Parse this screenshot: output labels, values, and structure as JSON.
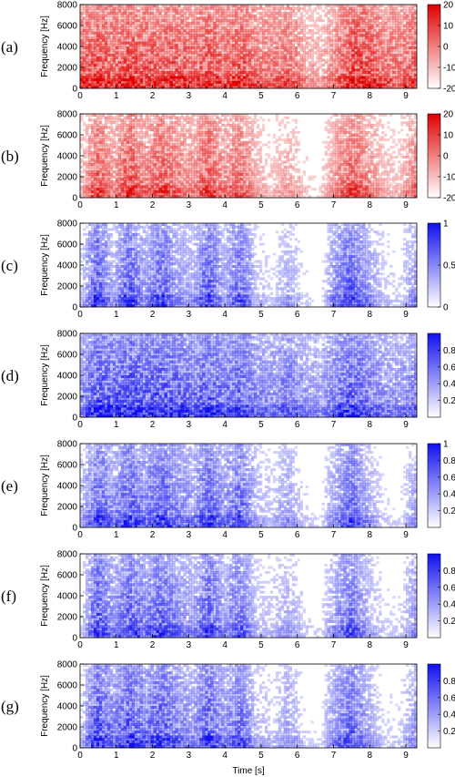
{
  "xlabel": "Time [s]",
  "chart_data": [
    {
      "panel_label": "(a)",
      "type": "heatmap",
      "ylabel": "Frequency [Hz]",
      "xlim": [
        0,
        9.3
      ],
      "ylim": [
        0,
        8000
      ],
      "xticks": [
        "0",
        "1",
        "2",
        "3",
        "4",
        "5",
        "6",
        "7",
        "8",
        "9"
      ],
      "yticks": [
        "0",
        "2000",
        "4000",
        "6000",
        "8000"
      ],
      "colorbar": {
        "color": "#e00000",
        "range": [
          -20,
          20
        ],
        "ticks": [
          "-20",
          "-10",
          "0",
          "10",
          "20"
        ]
      },
      "energy": [
        0.78,
        0.88,
        0.8,
        0.88,
        0.85,
        0.78,
        0.86,
        0.7,
        0.9,
        0.72,
        0.9,
        0.65,
        0.6,
        0.7,
        0.45,
        0.35,
        0.6,
        0.95,
        0.9,
        0.7,
        0.65,
        0.8
      ]
    },
    {
      "panel_label": "(b)",
      "type": "heatmap",
      "ylabel": "Frequency [Hz]",
      "xlim": [
        0,
        9.3
      ],
      "ylim": [
        0,
        8000
      ],
      "xticks": [
        "0",
        "1",
        "2",
        "3",
        "4",
        "5",
        "6",
        "7",
        "8",
        "9"
      ],
      "yticks": [
        "0",
        "2000",
        "4000",
        "6000",
        "8000"
      ],
      "colorbar": {
        "color": "#e00000",
        "range": [
          -20,
          20
        ],
        "ticks": [
          "-20",
          "-10",
          "0",
          "10",
          "20"
        ]
      },
      "energy": [
        0.3,
        0.8,
        0.45,
        0.85,
        0.55,
        0.8,
        0.6,
        0.5,
        0.8,
        0.5,
        0.7,
        0.35,
        0.25,
        0.4,
        0.2,
        0.15,
        0.5,
        0.75,
        0.55,
        0.3,
        0.25,
        0.6
      ]
    },
    {
      "panel_label": "(c)",
      "type": "heatmap",
      "ylabel": "Frequency [Hz]",
      "xlim": [
        0,
        9.3
      ],
      "ylim": [
        0,
        8000
      ],
      "xticks": [
        "0",
        "1",
        "2",
        "3",
        "4",
        "5",
        "6",
        "7",
        "8",
        "9"
      ],
      "yticks": [
        "0",
        "2000",
        "4000",
        "6000",
        "8000"
      ],
      "colorbar": {
        "color": "#1010ee",
        "range": [
          0,
          1
        ],
        "ticks": [
          "0",
          "0.5",
          "1"
        ]
      },
      "energy": [
        0.25,
        0.9,
        0.35,
        0.9,
        0.45,
        0.85,
        0.5,
        0.4,
        0.9,
        0.4,
        0.8,
        0.3,
        0.2,
        0.4,
        0.2,
        0.1,
        0.6,
        0.85,
        0.5,
        0.25,
        0.2,
        0.5
      ]
    },
    {
      "panel_label": "(d)",
      "type": "heatmap",
      "ylabel": "Frequency [Hz]",
      "xlim": [
        0,
        9.3
      ],
      "ylim": [
        0,
        8000
      ],
      "xticks": [
        "0",
        "1",
        "2",
        "3",
        "4",
        "5",
        "6",
        "7",
        "8",
        "9"
      ],
      "yticks": [
        "0",
        "2000",
        "4000",
        "6000",
        "8000"
      ],
      "colorbar": {
        "color": "#1010ee",
        "range": [
          0,
          1
        ],
        "ticks": [
          "0.2",
          "0.4",
          "0.6",
          "0.8"
        ]
      },
      "energy": [
        0.55,
        0.95,
        0.8,
        0.95,
        0.85,
        0.9,
        0.85,
        0.7,
        0.9,
        0.7,
        0.85,
        0.6,
        0.55,
        0.7,
        0.5,
        0.45,
        0.7,
        0.9,
        0.7,
        0.55,
        0.5,
        0.65
      ]
    },
    {
      "panel_label": "(e)",
      "type": "heatmap",
      "ylabel": "Frequency [Hz]",
      "xlim": [
        0,
        9.3
      ],
      "ylim": [
        0,
        8000
      ],
      "xticks": [
        "0",
        "1",
        "2",
        "3",
        "4",
        "5",
        "6",
        "7",
        "8",
        "9"
      ],
      "yticks": [
        "0",
        "2000",
        "4000",
        "6000",
        "8000"
      ],
      "colorbar": {
        "color": "#1010ee",
        "range": [
          0,
          1
        ],
        "ticks": [
          "0.2",
          "0.4",
          "0.6",
          "0.8",
          "1"
        ]
      },
      "energy": [
        0.3,
        0.85,
        0.55,
        0.85,
        0.6,
        0.85,
        0.6,
        0.5,
        0.85,
        0.5,
        0.8,
        0.35,
        0.25,
        0.45,
        0.2,
        0.15,
        0.5,
        0.8,
        0.45,
        0.2,
        0.15,
        0.45
      ]
    },
    {
      "panel_label": "(f)",
      "type": "heatmap",
      "ylabel": "Frequency [Hz]",
      "xlim": [
        0,
        9.3
      ],
      "ylim": [
        0,
        8000
      ],
      "xticks": [
        "0",
        "1",
        "2",
        "3",
        "4",
        "5",
        "6",
        "7",
        "8",
        "9"
      ],
      "yticks": [
        "0",
        "2000",
        "4000",
        "6000",
        "8000"
      ],
      "colorbar": {
        "color": "#1010ee",
        "range": [
          0,
          1
        ],
        "ticks": [
          "0.2",
          "0.4",
          "0.6",
          "0.8"
        ]
      },
      "energy": [
        0.2,
        0.9,
        0.5,
        0.85,
        0.6,
        0.85,
        0.6,
        0.45,
        0.85,
        0.45,
        0.75,
        0.3,
        0.25,
        0.4,
        0.2,
        0.15,
        0.5,
        0.75,
        0.4,
        0.2,
        0.2,
        0.5
      ]
    },
    {
      "panel_label": "(g)",
      "type": "heatmap",
      "ylabel": "Frequency [Hz]",
      "xlim": [
        0,
        9.3
      ],
      "ylim": [
        0,
        8000
      ],
      "xticks": [
        "0",
        "1",
        "2",
        "3",
        "4",
        "5",
        "6",
        "7",
        "8",
        "9"
      ],
      "yticks": [
        "0",
        "2000",
        "4000",
        "6000",
        "8000"
      ],
      "colorbar": {
        "color": "#1010ee",
        "range": [
          0,
          1
        ],
        "ticks": [
          "0.2",
          "0.4",
          "0.6",
          "0.8"
        ]
      },
      "energy": [
        0.25,
        0.95,
        0.6,
        0.9,
        0.65,
        0.9,
        0.65,
        0.5,
        0.9,
        0.5,
        0.8,
        0.35,
        0.25,
        0.45,
        0.2,
        0.15,
        0.55,
        0.8,
        0.45,
        0.2,
        0.2,
        0.5
      ]
    }
  ]
}
